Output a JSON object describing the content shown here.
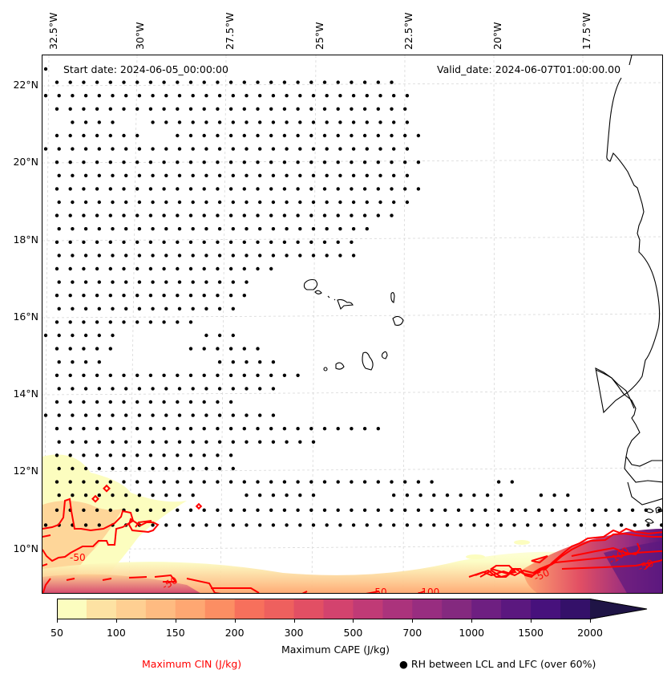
{
  "map": {
    "start_date": "Start date: 2024-06-05_00:00:00",
    "valid_date": "Valid_date: 2024-06-07T01:00:00.00",
    "lon_ticks": [
      "32.5°W",
      "30°W",
      "27.5°W",
      "25°W",
      "22.5°W",
      "20°W",
      "17.5°W"
    ],
    "lat_ticks": [
      "22°N",
      "20°N",
      "18°N",
      "16°N",
      "14°N",
      "12°N",
      "10°N"
    ],
    "extent": {
      "lon_min": -32.6,
      "lon_max": -15.1,
      "lat_min": 8.9,
      "lat_max": 22.7
    },
    "cin_contour_labels": [
      "-50",
      "-50",
      "-50",
      "-100",
      "-50",
      "-100",
      "-50",
      "-50"
    ],
    "colors": {
      "cin_contour": "#ff0000",
      "coastline": "#000000",
      "dots": "#000000",
      "grid": "#cccccc"
    }
  },
  "colorbar": {
    "title": "Maximum CAPE (J/kg)",
    "ticks": [
      "50",
      "100",
      "150",
      "200",
      "300",
      "500",
      "700",
      "1000",
      "1500",
      "2000"
    ],
    "levels": [
      50,
      75,
      100,
      125,
      150,
      175,
      200,
      250,
      300,
      400,
      500,
      600,
      700,
      800,
      1000,
      1250,
      1500,
      1750,
      2000
    ],
    "colors": [
      "#fcfdbf",
      "#fde2a3",
      "#fecf92",
      "#febb81",
      "#fea772",
      "#fc8e63",
      "#f7705c",
      "#ee605e",
      "#e24f64",
      "#d3436e",
      "#c03a76",
      "#ab337c",
      "#982d80",
      "#84297f",
      "#6e1f81",
      "#5b187f",
      "#47117c",
      "#341069",
      "#1f1446"
    ],
    "extend": "max"
  },
  "legend": {
    "cin_label": "Maximum CIN (J/kg)",
    "rh_label": "RH between LCL and LFC (over 60%)",
    "rh_marker": "●"
  }
}
